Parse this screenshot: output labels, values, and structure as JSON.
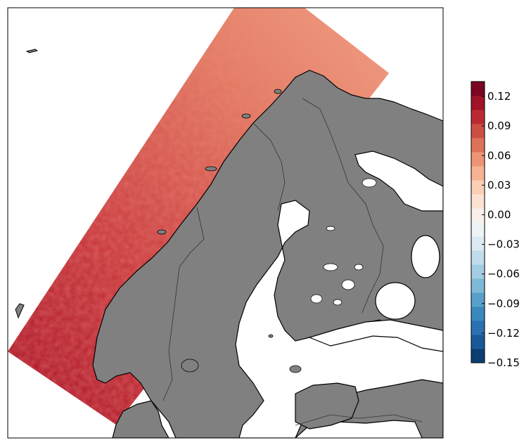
{
  "map": {
    "colormap": "RdBu_r",
    "land_color": "#808080",
    "water_color": "#ffffff",
    "border_color": "#333333",
    "coast_color": "#000000",
    "swath_colors": [
      "#f1a383",
      "#e9846a",
      "#d2544b",
      "#b11d2e"
    ]
  },
  "colorbar": {
    "min": -0.15,
    "max": 0.135,
    "levels": 20,
    "ticks": [
      {
        "value": 0.12,
        "label": "0.12"
      },
      {
        "value": 0.09,
        "label": "0.09"
      },
      {
        "value": 0.06,
        "label": "0.06"
      },
      {
        "value": 0.03,
        "label": "0.03"
      },
      {
        "value": 0.0,
        "label": "0.00"
      },
      {
        "value": -0.03,
        "label": "−0.03"
      },
      {
        "value": -0.06,
        "label": "−0.06"
      },
      {
        "value": -0.09,
        "label": "−0.09"
      },
      {
        "value": -0.12,
        "label": "−0.12"
      },
      {
        "value": -0.15,
        "label": "−0.15"
      }
    ]
  }
}
